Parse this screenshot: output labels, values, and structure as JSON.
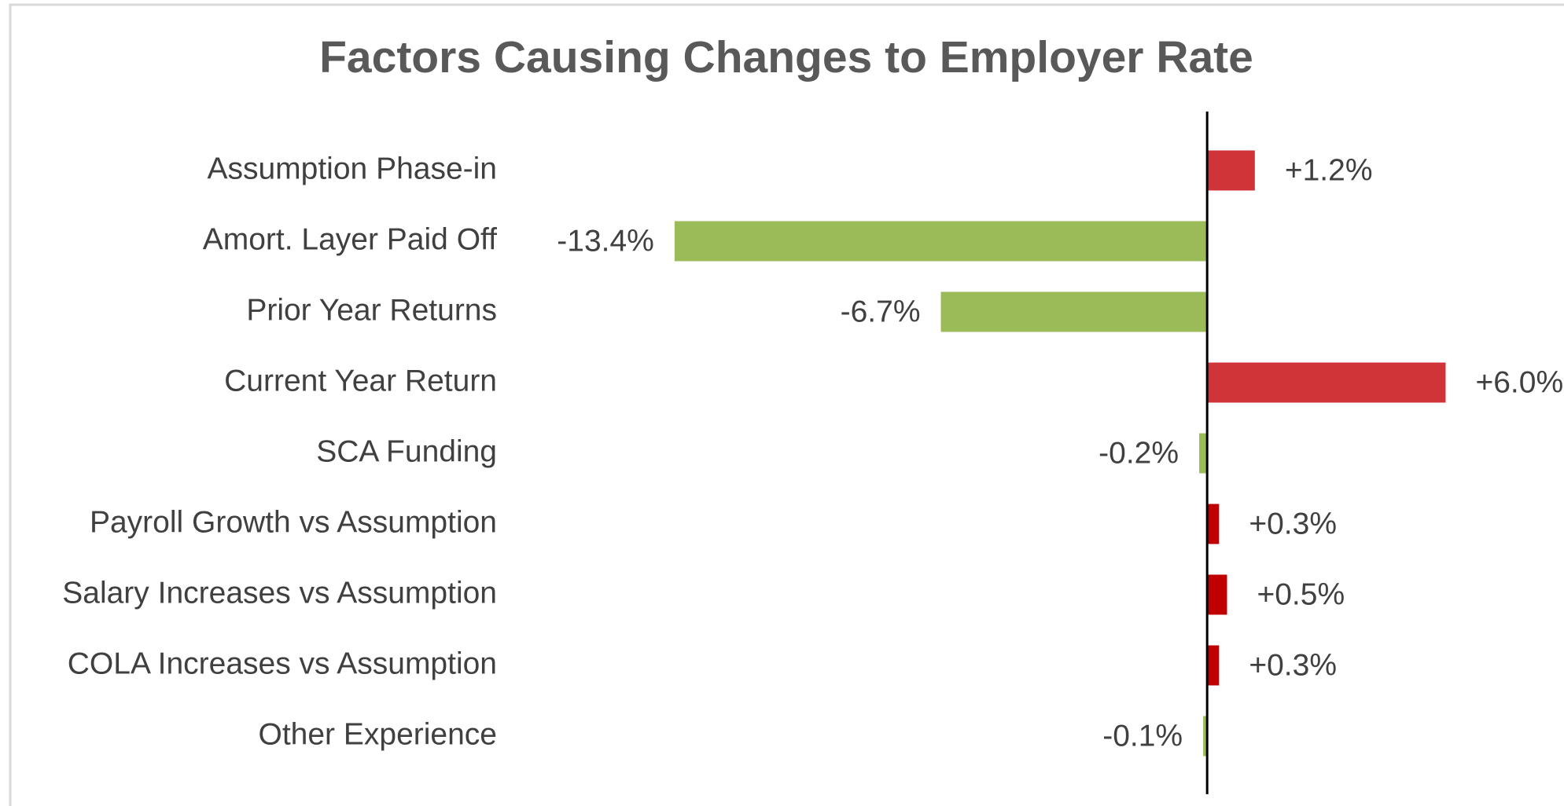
{
  "chart_data": {
    "type": "hbar",
    "title": "Factors Causing Changes to Employer Rate",
    "categories": [
      "Assumption Phase-in",
      "Amort. Layer Paid Off",
      "Prior Year Returns",
      "Current Year Return",
      "SCA Funding",
      "Payroll Growth vs Assumption",
      "Salary Increases vs Assumption",
      "COLA Increases vs Assumption",
      "Other Experience"
    ],
    "values": [
      1.2,
      -13.4,
      -6.7,
      6.0,
      -0.2,
      0.3,
      0.5,
      0.3,
      -0.1
    ],
    "value_labels": [
      "+1.2%",
      "-13.4%",
      "-6.7%",
      "+6.0%",
      "-0.2%",
      "+0.3%",
      "+0.5%",
      "+0.3%",
      "-0.1%"
    ],
    "colors": [
      "#d13438",
      "#9bbb59",
      "#9bbb59",
      "#d13438",
      "#9bbb59",
      "#c00000",
      "#c00000",
      "#c00000",
      "#9bbb59"
    ],
    "xlim": [
      -15,
      7
    ]
  }
}
